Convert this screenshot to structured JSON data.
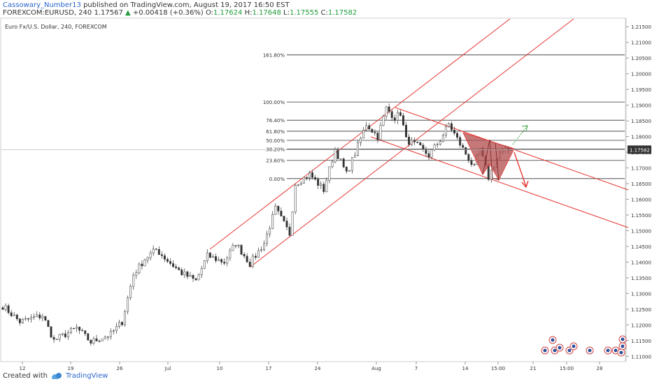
{
  "header": {
    "user": "Cassowary_Number13",
    "published": "published on TradingView.com, August 19, 2017 16:50 EST",
    "symbol_line": "FOREXCOM:EURUSD, 240",
    "last": "1.17567",
    "arrow": "▲",
    "change": "+0.00418 (+0.36%)",
    "o_label": "O:",
    "o_value": "1.17624",
    "h_label": "H:",
    "h_value": "1.17648",
    "l_label": "L:",
    "l_value": "1.17555",
    "c_label": "C:",
    "c_value": "1.17582"
  },
  "footer": {
    "created_with": "Created with",
    "brand": "TradingView"
  },
  "colors": {
    "candle": "#333333",
    "trend": "#e53935",
    "fib": "#333333",
    "triangle_fill": "#b24b4b",
    "arrow_up": "#3fa64a",
    "arrow_down": "#e53935"
  },
  "chart_data": {
    "type": "candlestick",
    "title": "Euro Fx/U.S. Dollar, 240, FOREXCOM",
    "price_label": "1.17582",
    "y_ticks": [
      "1.21500",
      "1.21000",
      "1.20500",
      "1.20000",
      "1.19500",
      "1.19000",
      "1.18500",
      "1.18000",
      "1.17500",
      "1.17000",
      "1.16500",
      "1.16000",
      "1.15500",
      "1.15000",
      "1.14500",
      "1.14000",
      "1.13500",
      "1.13000",
      "1.12500",
      "1.12000",
      "1.11500",
      "1.11000"
    ],
    "x_ticks": [
      "12",
      "19",
      "26",
      "Jul",
      "10",
      "17",
      "24",
      "Aug",
      "7",
      "14",
      "15:00",
      "21",
      "15:00",
      "28"
    ],
    "ylim": [
      1.1085,
      1.2175
    ],
    "fib_levels": [
      {
        "label": "161.80%",
        "price": 1.206
      },
      {
        "label": "100.00%",
        "price": 1.191
      },
      {
        "label": "76.40%",
        "price": 1.1852
      },
      {
        "label": "61.80%",
        "price": 1.1817
      },
      {
        "label": "50.00%",
        "price": 1.1788
      },
      {
        "label": "38.20%",
        "price": 1.176
      },
      {
        "label": "23.60%",
        "price": 1.1724
      },
      {
        "label": "0.00%",
        "price": 1.1666
      }
    ],
    "anchors": [
      {
        "x": 0,
        "y": 1.126
      },
      {
        "x": 6,
        "y": 1.121
      },
      {
        "x": 14,
        "y": 1.123
      },
      {
        "x": 18,
        "y": 1.115
      },
      {
        "x": 26,
        "y": 1.119
      },
      {
        "x": 31,
        "y": 1.1145
      },
      {
        "x": 38,
        "y": 1.117
      },
      {
        "x": 42,
        "y": 1.121
      },
      {
        "x": 46,
        "y": 1.136
      },
      {
        "x": 50,
        "y": 1.141
      },
      {
        "x": 54,
        "y": 1.144
      },
      {
        "x": 58,
        "y": 1.1405
      },
      {
        "x": 63,
        "y": 1.1365
      },
      {
        "x": 68,
        "y": 1.134
      },
      {
        "x": 72,
        "y": 1.142
      },
      {
        "x": 78,
        "y": 1.14
      },
      {
        "x": 82,
        "y": 1.146
      },
      {
        "x": 87,
        "y": 1.1395
      },
      {
        "x": 92,
        "y": 1.146
      },
      {
        "x": 96,
        "y": 1.157
      },
      {
        "x": 101,
        "y": 1.149
      },
      {
        "x": 103,
        "y": 1.165
      },
      {
        "x": 108,
        "y": 1.168
      },
      {
        "x": 113,
        "y": 1.163
      },
      {
        "x": 117,
        "y": 1.176
      },
      {
        "x": 121,
        "y": 1.168
      },
      {
        "x": 125,
        "y": 1.177
      },
      {
        "x": 128,
        "y": 1.184
      },
      {
        "x": 132,
        "y": 1.18
      },
      {
        "x": 135,
        "y": 1.189
      },
      {
        "x": 138,
        "y": 1.186
      },
      {
        "x": 140,
        "y": 1.1875
      },
      {
        "x": 142,
        "y": 1.179
      },
      {
        "x": 146,
        "y": 1.177
      },
      {
        "x": 150,
        "y": 1.174
      },
      {
        "x": 154,
        "y": 1.179
      },
      {
        "x": 157,
        "y": 1.184
      },
      {
        "x": 162,
        "y": 1.176
      },
      {
        "x": 166,
        "y": 1.17
      },
      {
        "x": 168,
        "y": 1.176
      },
      {
        "x": 171,
        "y": 1.167
      },
      {
        "x": 175,
        "y": 1.175
      },
      {
        "x": 179,
        "y": 1.1758
      }
    ]
  }
}
